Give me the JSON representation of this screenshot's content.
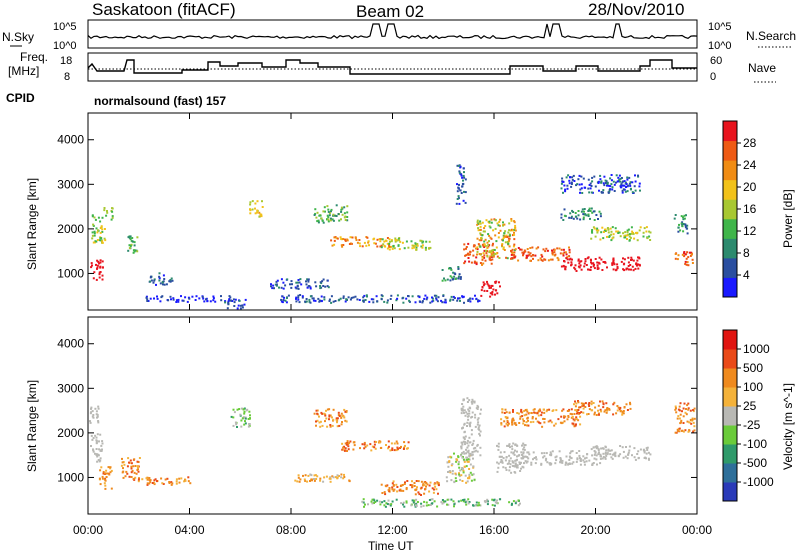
{
  "header": {
    "title": "Saskatoon (fitACF)",
    "beam": "Beam 02",
    "date": "28/Nov/2010"
  },
  "strips": {
    "nsky_label": "N.Sky",
    "nsky_ticks": [
      "10^5",
      "10^0"
    ],
    "nsearch_label": "N.Search",
    "nsearch_ticks": [
      "10^5",
      "10^0"
    ],
    "freq_label": "Freq.",
    "freq_unit": "[MHz]",
    "freq_ticks": [
      "18",
      "8"
    ],
    "nave_ticks": [
      "60",
      "0"
    ],
    "nave_label": "Nave",
    "cpid_label": "CPID",
    "cpid_value": "normalsound (fast) 157"
  },
  "colors": {
    "power": [
      "#1a1aff",
      "#2a4ea0",
      "#2c8a6e",
      "#3fb54a",
      "#a8c832",
      "#f2c21a",
      "#f08c14",
      "#ee5a14",
      "#e8141e"
    ],
    "velocity": [
      "#2a3ab8",
      "#2e6f9a",
      "#2f9a6a",
      "#6acb3a",
      "#b8b8b4",
      "#f4b23a",
      "#ef8a1e",
      "#ea4a18",
      "#e01410"
    ]
  },
  "chart_data": {
    "type": "heatmap",
    "x_ticks": [
      "00:00",
      "04:00",
      "08:00",
      "12:00",
      "16:00",
      "20:00",
      "00:00"
    ],
    "xlabel": "Time UT",
    "panels": [
      {
        "name": "power",
        "ylabel": "Slant Range [km]",
        "y_ticks": [
          1000,
          2000,
          3000,
          4000
        ],
        "ylim": [
          180,
          4600
        ],
        "colorbar_label": "Power [dB]",
        "colorbar_ticks": [
          "28",
          "24",
          "20",
          "16",
          "12",
          "8",
          "4"
        ]
      },
      {
        "name": "velocity",
        "ylabel": "Slant Range [km]",
        "y_ticks": [
          1000,
          2000,
          3000,
          4000
        ],
        "ylim": [
          180,
          4600
        ],
        "colorbar_label": "Velocity [m s^-1]",
        "colorbar_ticks": [
          "1000",
          "500",
          "100",
          "25",
          "-25",
          "-100",
          "-500",
          "-1000"
        ]
      }
    ]
  }
}
